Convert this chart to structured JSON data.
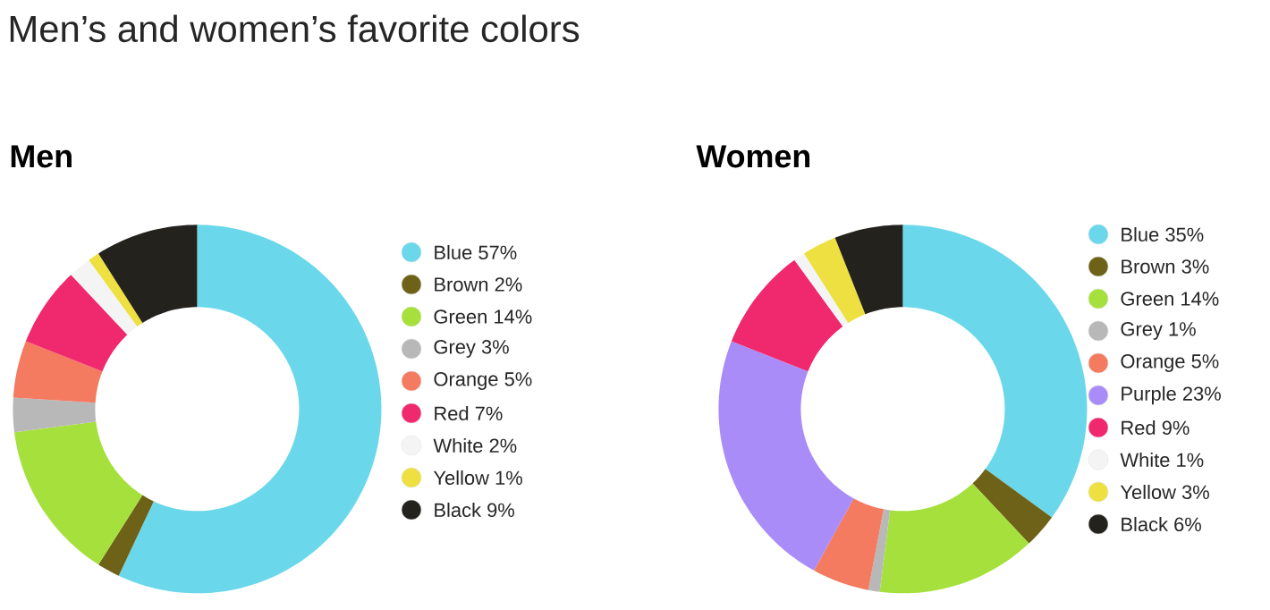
{
  "chart_data": [
    {
      "type": "donut",
      "title": "Men",
      "annotations": [
        "Men’s and women’s favorite colors"
      ],
      "legend": "right",
      "categories": [
        "Blue",
        "Brown",
        "Green",
        "Grey",
        "Orange",
        "Red",
        "White",
        "Yellow",
        "Black"
      ],
      "values": [
        57,
        2,
        14,
        3,
        5,
        7,
        2,
        1,
        9
      ],
      "value_labels": [
        "57%",
        "2%",
        "14%",
        "3%",
        "5%",
        "7%",
        "2%",
        "1%",
        "9%"
      ],
      "colors": [
        "#6ad8ea",
        "#6e6218",
        "#a6e03c",
        "#b8b8b8",
        "#f47a60",
        "#f0286e",
        "#f4f4f4",
        "#ede040",
        "#24221c"
      ]
    },
    {
      "type": "donut",
      "title": "Women",
      "legend": "right",
      "categories": [
        "Blue",
        "Brown",
        "Green",
        "Grey",
        "Orange",
        "Purple",
        "Red",
        "White",
        "Yellow",
        "Black"
      ],
      "values": [
        35,
        3,
        14,
        1,
        5,
        23,
        9,
        1,
        3,
        6
      ],
      "value_labels": [
        "35%",
        "3%",
        "14%",
        "1%",
        "5%",
        "23%",
        "9%",
        "1%",
        "3%",
        "6%"
      ],
      "colors": [
        "#6ad8ea",
        "#6e6218",
        "#a6e03c",
        "#b8b8b8",
        "#f47a60",
        "#a98cf8",
        "#f0286e",
        "#f4f4f4",
        "#ede040",
        "#24221c"
      ]
    }
  ]
}
